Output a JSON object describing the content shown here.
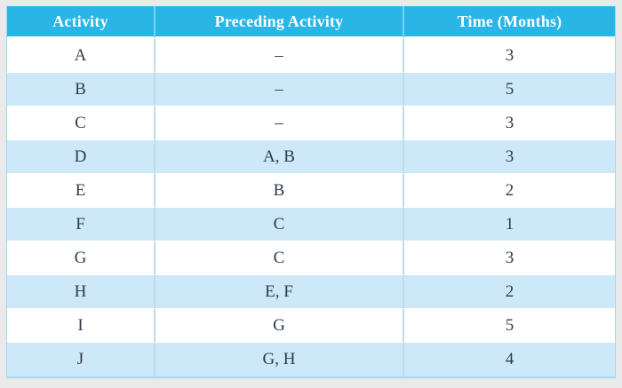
{
  "table": {
    "headers": [
      "Activity",
      "Preceding Activity",
      "Time (Months)"
    ],
    "column_keys": [
      "activity",
      "preceding-activity",
      "time-months"
    ],
    "rows": [
      [
        "A",
        "–",
        "3"
      ],
      [
        "B",
        "–",
        "5"
      ],
      [
        "C",
        "–",
        "3"
      ],
      [
        "D",
        "A, B",
        "3"
      ],
      [
        "E",
        "B",
        "2"
      ],
      [
        "F",
        "C",
        "1"
      ],
      [
        "G",
        "C",
        "3"
      ],
      [
        "H",
        "E, F",
        "2"
      ],
      [
        "I",
        "G",
        "5"
      ],
      [
        "J",
        "G, H",
        "4"
      ]
    ]
  },
  "colors": {
    "page_bg": "#EAEAEA",
    "header_bg": "#29B5E5",
    "header_text": "#FFFFFF",
    "header_divider": "#79D2F1",
    "row_bg": "#FFFFFF",
    "row_alt_bg": "#CDE9F9",
    "cell_divider": "#BFDDEC",
    "body_text": "#2E3B49",
    "outer_border": "#A5D6EE"
  }
}
